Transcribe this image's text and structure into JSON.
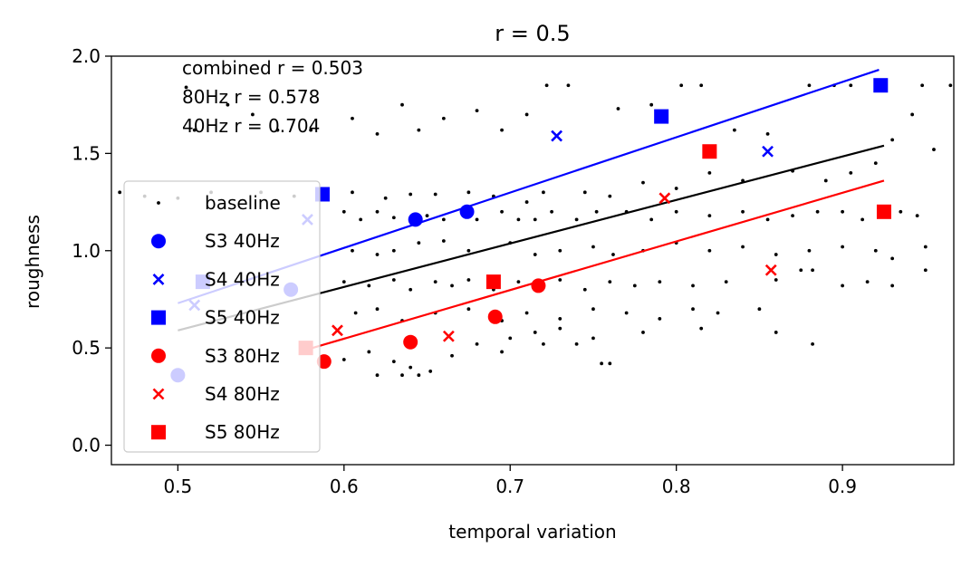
{
  "chart_data": {
    "type": "scatter",
    "title": "r = 0.5",
    "xlabel": "temporal variation",
    "ylabel": "roughness",
    "xlim": [
      0.46,
      0.967
    ],
    "ylim": [
      -0.1,
      2.0
    ],
    "xticks": [
      0.5,
      0.6,
      0.7,
      0.8,
      0.9
    ],
    "xtick_labels": [
      "0.5",
      "0.6",
      "0.7",
      "0.8",
      "0.9"
    ],
    "yticks": [
      0.0,
      0.5,
      1.0,
      1.5,
      2.0
    ],
    "ytick_labels": [
      "0.0",
      "0.5",
      "1.0",
      "1.5",
      "2.0"
    ],
    "grid": false,
    "legend_position": "lower-left",
    "annotations": [
      "combined r = 0.503",
      "80Hz r = 0.578",
      "40Hz r = 0.704"
    ],
    "series": [
      {
        "name": "baseline",
        "marker": "dot",
        "color": "#000000",
        "points": [
          [
            0.505,
            1.84
          ],
          [
            0.51,
            1.62
          ],
          [
            0.53,
            1.75
          ],
          [
            0.545,
            1.7
          ],
          [
            0.56,
            1.62
          ],
          [
            0.58,
            1.62
          ],
          [
            0.605,
            1.68
          ],
          [
            0.62,
            1.6
          ],
          [
            0.635,
            1.75
          ],
          [
            0.645,
            1.62
          ],
          [
            0.66,
            1.68
          ],
          [
            0.68,
            1.72
          ],
          [
            0.695,
            1.62
          ],
          [
            0.71,
            1.7
          ],
          [
            0.722,
            1.85
          ],
          [
            0.735,
            1.85
          ],
          [
            0.765,
            1.73
          ],
          [
            0.785,
            1.75
          ],
          [
            0.803,
            1.85
          ],
          [
            0.815,
            1.85
          ],
          [
            0.835,
            1.62
          ],
          [
            0.855,
            1.6
          ],
          [
            0.88,
            1.85
          ],
          [
            0.895,
            1.85
          ],
          [
            0.905,
            1.85
          ],
          [
            0.948,
            1.85
          ],
          [
            0.965,
            1.85
          ],
          [
            0.942,
            1.7
          ],
          [
            0.955,
            1.52
          ],
          [
            0.93,
            1.57
          ],
          [
            0.92,
            1.45
          ],
          [
            0.905,
            1.4
          ],
          [
            0.89,
            1.36
          ],
          [
            0.87,
            1.41
          ],
          [
            0.84,
            1.36
          ],
          [
            0.82,
            1.4
          ],
          [
            0.8,
            1.32
          ],
          [
            0.78,
            1.35
          ],
          [
            0.76,
            1.28
          ],
          [
            0.745,
            1.3
          ],
          [
            0.72,
            1.3
          ],
          [
            0.71,
            1.25
          ],
          [
            0.69,
            1.28
          ],
          [
            0.675,
            1.3
          ],
          [
            0.655,
            1.29
          ],
          [
            0.64,
            1.29
          ],
          [
            0.625,
            1.27
          ],
          [
            0.605,
            1.3
          ],
          [
            0.59,
            1.27
          ],
          [
            0.57,
            1.28
          ],
          [
            0.55,
            1.3
          ],
          [
            0.52,
            1.3
          ],
          [
            0.5,
            1.27
          ],
          [
            0.48,
            1.28
          ],
          [
            0.465,
            1.3
          ],
          [
            0.6,
            1.2
          ],
          [
            0.61,
            1.16
          ],
          [
            0.62,
            1.2
          ],
          [
            0.63,
            1.17
          ],
          [
            0.65,
            1.18
          ],
          [
            0.66,
            1.16
          ],
          [
            0.68,
            1.16
          ],
          [
            0.695,
            1.2
          ],
          [
            0.705,
            1.16
          ],
          [
            0.715,
            1.16
          ],
          [
            0.725,
            1.2
          ],
          [
            0.74,
            1.16
          ],
          [
            0.752,
            1.2
          ],
          [
            0.77,
            1.2
          ],
          [
            0.785,
            1.16
          ],
          [
            0.8,
            1.2
          ],
          [
            0.82,
            1.18
          ],
          [
            0.84,
            1.2
          ],
          [
            0.855,
            1.16
          ],
          [
            0.87,
            1.18
          ],
          [
            0.885,
            1.2
          ],
          [
            0.9,
            1.2
          ],
          [
            0.912,
            1.16
          ],
          [
            0.935,
            1.2
          ],
          [
            0.945,
            1.18
          ],
          [
            0.605,
            1.0
          ],
          [
            0.62,
            0.98
          ],
          [
            0.63,
            1.0
          ],
          [
            0.645,
            1.04
          ],
          [
            0.66,
            1.05
          ],
          [
            0.675,
            1.0
          ],
          [
            0.7,
            1.04
          ],
          [
            0.715,
            0.98
          ],
          [
            0.73,
            1.0
          ],
          [
            0.75,
            1.02
          ],
          [
            0.762,
            0.98
          ],
          [
            0.78,
            1.0
          ],
          [
            0.8,
            1.04
          ],
          [
            0.82,
            1.0
          ],
          [
            0.84,
            1.02
          ],
          [
            0.86,
            0.98
          ],
          [
            0.88,
            1.0
          ],
          [
            0.9,
            1.02
          ],
          [
            0.92,
            1.0
          ],
          [
            0.93,
            0.96
          ],
          [
            0.95,
            1.02
          ],
          [
            0.6,
            0.84
          ],
          [
            0.615,
            0.82
          ],
          [
            0.63,
            0.85
          ],
          [
            0.64,
            0.8
          ],
          [
            0.655,
            0.84
          ],
          [
            0.665,
            0.82
          ],
          [
            0.675,
            0.85
          ],
          [
            0.69,
            0.8
          ],
          [
            0.705,
            0.84
          ],
          [
            0.72,
            0.82
          ],
          [
            0.73,
            0.85
          ],
          [
            0.745,
            0.8
          ],
          [
            0.76,
            0.84
          ],
          [
            0.775,
            0.82
          ],
          [
            0.79,
            0.84
          ],
          [
            0.81,
            0.82
          ],
          [
            0.83,
            0.84
          ],
          [
            0.86,
            0.85
          ],
          [
            0.875,
            0.9
          ],
          [
            0.882,
            0.9
          ],
          [
            0.9,
            0.82
          ],
          [
            0.915,
            0.84
          ],
          [
            0.93,
            0.82
          ],
          [
            0.95,
            0.9
          ],
          [
            0.607,
            0.68
          ],
          [
            0.62,
            0.7
          ],
          [
            0.635,
            0.64
          ],
          [
            0.655,
            0.68
          ],
          [
            0.675,
            0.7
          ],
          [
            0.695,
            0.64
          ],
          [
            0.71,
            0.68
          ],
          [
            0.73,
            0.65
          ],
          [
            0.75,
            0.7
          ],
          [
            0.77,
            0.68
          ],
          [
            0.79,
            0.65
          ],
          [
            0.81,
            0.7
          ],
          [
            0.825,
            0.68
          ],
          [
            0.85,
            0.7
          ],
          [
            0.86,
            0.58
          ],
          [
            0.882,
            0.52
          ],
          [
            0.815,
            0.6
          ],
          [
            0.78,
            0.58
          ],
          [
            0.75,
            0.55
          ],
          [
            0.73,
            0.6
          ],
          [
            0.715,
            0.58
          ],
          [
            0.7,
            0.55
          ],
          [
            0.6,
            0.44
          ],
          [
            0.615,
            0.48
          ],
          [
            0.63,
            0.43
          ],
          [
            0.64,
            0.4
          ],
          [
            0.652,
            0.38
          ],
          [
            0.665,
            0.46
          ],
          [
            0.68,
            0.52
          ],
          [
            0.695,
            0.48
          ],
          [
            0.72,
            0.52
          ],
          [
            0.74,
            0.52
          ],
          [
            0.755,
            0.42
          ],
          [
            0.76,
            0.42
          ],
          [
            0.62,
            0.36
          ],
          [
            0.635,
            0.36
          ],
          [
            0.645,
            0.36
          ]
        ]
      },
      {
        "name": "S3 40Hz",
        "marker": "circle",
        "color": "#0000ff",
        "points": [
          [
            0.5,
            0.36
          ],
          [
            0.568,
            0.8
          ],
          [
            0.643,
            1.16
          ],
          [
            0.674,
            1.2
          ]
        ]
      },
      {
        "name": "S4 40Hz",
        "marker": "x",
        "color": "#0000ff",
        "points": [
          [
            0.51,
            0.72
          ],
          [
            0.578,
            1.16
          ],
          [
            0.728,
            1.59
          ],
          [
            0.855,
            1.51
          ]
        ]
      },
      {
        "name": "S5 40Hz",
        "marker": "square",
        "color": "#0000ff",
        "points": [
          [
            0.515,
            0.84
          ],
          [
            0.587,
            1.29
          ],
          [
            0.791,
            1.69
          ],
          [
            0.923,
            1.85
          ]
        ]
      },
      {
        "name": "S3 80Hz",
        "marker": "circle",
        "color": "#ff0000",
        "points": [
          [
            0.588,
            0.43
          ],
          [
            0.64,
            0.53
          ],
          [
            0.691,
            0.66
          ],
          [
            0.717,
            0.82
          ]
        ]
      },
      {
        "name": "S4 80Hz",
        "marker": "x",
        "color": "#ff0000",
        "points": [
          [
            0.596,
            0.59
          ],
          [
            0.663,
            0.56
          ],
          [
            0.793,
            1.27
          ],
          [
            0.857,
            0.9
          ]
        ]
      },
      {
        "name": "S5 80Hz",
        "marker": "square",
        "color": "#ff0000",
        "points": [
          [
            0.577,
            0.5
          ],
          [
            0.69,
            0.84
          ],
          [
            0.82,
            1.51
          ],
          [
            0.925,
            1.2
          ]
        ]
      }
    ],
    "fit_lines": [
      {
        "label": "combined",
        "color": "#000000",
        "x": [
          0.5,
          0.925
        ],
        "y": [
          0.59,
          1.54
        ]
      },
      {
        "label": "40Hz",
        "color": "#0000ff",
        "x": [
          0.5,
          0.922
        ],
        "y": [
          0.73,
          1.93
        ]
      },
      {
        "label": "80Hz",
        "color": "#ff0000",
        "x": [
          0.577,
          0.925
        ],
        "y": [
          0.49,
          1.36
        ]
      }
    ]
  }
}
